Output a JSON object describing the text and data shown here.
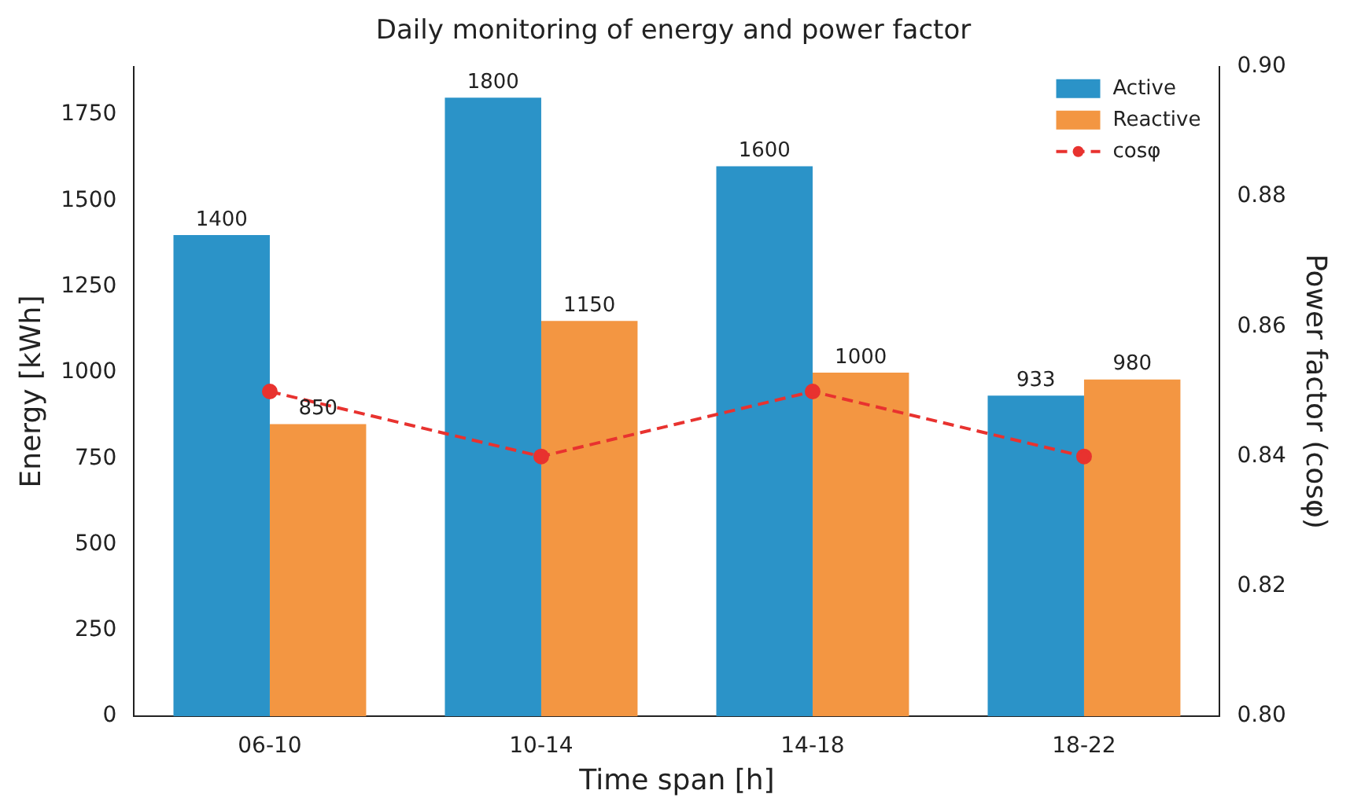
{
  "chart_data": {
    "type": "bar",
    "title": "Daily monitoring of energy and power factor",
    "xlabel": "Time span [h]",
    "ylabel": "Energy [kWh]",
    "y2label": "Power factor (cosφ)",
    "categories": [
      "06-10",
      "10-14",
      "14-18",
      "18-22"
    ],
    "series": [
      {
        "name": "Active",
        "color": "#2b93c8",
        "values": [
          1400,
          1800,
          1600,
          933
        ],
        "value_labels": [
          "1400",
          "1800",
          "1600",
          "933"
        ]
      },
      {
        "name": "Reactive",
        "color": "#f39642",
        "values": [
          850,
          1150,
          1000,
          980
        ],
        "value_labels": [
          "850",
          "1150",
          "1000",
          "980"
        ]
      },
      {
        "name": "cosφ",
        "type": "line",
        "axis": "y2",
        "color": "#e8322f",
        "values": [
          0.85,
          0.84,
          0.85,
          0.84
        ]
      }
    ],
    "ylim": [
      0,
      1890
    ],
    "yticks": [
      0,
      250,
      500,
      750,
      1000,
      1250,
      1500,
      1750
    ],
    "y2lim": [
      0.8,
      0.9
    ],
    "y2ticks": [
      {
        "value": 0.8,
        "label": "0.80"
      },
      {
        "value": 0.82,
        "label": "0.82"
      },
      {
        "value": 0.84,
        "label": "0.84"
      },
      {
        "value": 0.86,
        "label": "0.86"
      },
      {
        "value": 0.88,
        "label": "0.88"
      },
      {
        "value": 0.9,
        "label": "0.90"
      }
    ],
    "legend": "top right",
    "grid": false,
    "marker": "circle",
    "line_style": "dashed"
  }
}
